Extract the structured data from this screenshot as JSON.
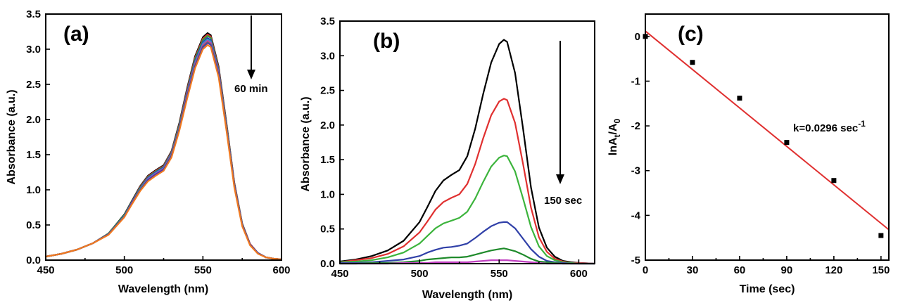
{
  "chart_data": [
    {
      "type": "line",
      "panel_label": "(a)",
      "xlabel": "Wavelength (nm)",
      "ylabel": "Absorbance (a.u.)",
      "xlim": [
        450,
        600
      ],
      "ylim": [
        0,
        3.5
      ],
      "xticks": [
        450,
        500,
        550,
        600
      ],
      "yticks": [
        0.0,
        0.5,
        1.0,
        1.5,
        2.0,
        2.5,
        3.0,
        3.5
      ],
      "ytick_labels": [
        "0.0",
        "0.5",
        "1.0",
        "1.5",
        "2.0",
        "2.5",
        "3.0",
        "3.5"
      ],
      "annotation": "60 min",
      "x": [
        450,
        460,
        470,
        480,
        490,
        500,
        505,
        510,
        515,
        520,
        525,
        530,
        535,
        540,
        545,
        550,
        553,
        555,
        560,
        565,
        570,
        575,
        580,
        585,
        590,
        595,
        600
      ],
      "series": [
        {
          "color": "#000000",
          "values": [
            0.05,
            0.09,
            0.15,
            0.24,
            0.38,
            0.65,
            0.85,
            1.05,
            1.2,
            1.28,
            1.35,
            1.55,
            1.95,
            2.45,
            2.9,
            3.17,
            3.23,
            3.2,
            2.75,
            1.95,
            1.1,
            0.52,
            0.23,
            0.1,
            0.04,
            0.02,
            0.01
          ]
        },
        {
          "color": "#e03030",
          "values": [
            0.05,
            0.09,
            0.15,
            0.24,
            0.38,
            0.64,
            0.84,
            1.04,
            1.19,
            1.27,
            1.34,
            1.54,
            1.93,
            2.43,
            2.88,
            3.15,
            3.21,
            3.18,
            2.73,
            1.93,
            1.09,
            0.51,
            0.23,
            0.1,
            0.04,
            0.02,
            0.01
          ]
        },
        {
          "color": "#2e9a3a",
          "values": [
            0.05,
            0.09,
            0.15,
            0.24,
            0.38,
            0.64,
            0.84,
            1.03,
            1.18,
            1.26,
            1.33,
            1.53,
            1.92,
            2.41,
            2.86,
            3.13,
            3.19,
            3.16,
            2.71,
            1.92,
            1.08,
            0.51,
            0.22,
            0.1,
            0.04,
            0.02,
            0.01
          ]
        },
        {
          "color": "#3030c0",
          "values": [
            0.05,
            0.09,
            0.15,
            0.24,
            0.37,
            0.63,
            0.83,
            1.02,
            1.17,
            1.25,
            1.32,
            1.52,
            1.9,
            2.39,
            2.83,
            3.1,
            3.16,
            3.13,
            2.69,
            1.9,
            1.07,
            0.5,
            0.22,
            0.1,
            0.04,
            0.02,
            0.01
          ]
        },
        {
          "color": "#2aa8b8",
          "values": [
            0.05,
            0.09,
            0.15,
            0.24,
            0.37,
            0.63,
            0.82,
            1.01,
            1.16,
            1.24,
            1.31,
            1.51,
            1.89,
            2.37,
            2.81,
            3.08,
            3.14,
            3.11,
            2.67,
            1.89,
            1.06,
            0.5,
            0.22,
            0.1,
            0.04,
            0.02,
            0.01
          ]
        },
        {
          "color": "#c030c0",
          "values": [
            0.05,
            0.09,
            0.15,
            0.24,
            0.37,
            0.62,
            0.82,
            1.0,
            1.15,
            1.23,
            1.3,
            1.5,
            1.88,
            2.36,
            2.79,
            3.06,
            3.12,
            3.09,
            2.66,
            1.88,
            1.06,
            0.5,
            0.22,
            0.1,
            0.04,
            0.02,
            0.01
          ]
        },
        {
          "color": "#8a8a2a",
          "values": [
            0.05,
            0.09,
            0.15,
            0.24,
            0.37,
            0.62,
            0.81,
            1.0,
            1.14,
            1.22,
            1.29,
            1.49,
            1.87,
            2.34,
            2.77,
            3.04,
            3.1,
            3.07,
            2.64,
            1.87,
            1.05,
            0.49,
            0.22,
            0.1,
            0.04,
            0.02,
            0.01
          ]
        },
        {
          "color": "#4a3aa8",
          "values": [
            0.05,
            0.09,
            0.15,
            0.24,
            0.37,
            0.62,
            0.81,
            0.99,
            1.14,
            1.22,
            1.29,
            1.48,
            1.86,
            2.33,
            2.76,
            3.03,
            3.09,
            3.06,
            2.63,
            1.86,
            1.05,
            0.49,
            0.22,
            0.1,
            0.04,
            0.02,
            0.01
          ]
        },
        {
          "color": "#f07a20",
          "values": [
            0.05,
            0.09,
            0.15,
            0.24,
            0.36,
            0.61,
            0.8,
            0.98,
            1.12,
            1.2,
            1.27,
            1.46,
            1.84,
            2.3,
            2.73,
            3.0,
            3.06,
            3.03,
            2.6,
            1.84,
            1.03,
            0.48,
            0.21,
            0.09,
            0.04,
            0.02,
            0.01
          ]
        }
      ]
    },
    {
      "type": "line",
      "panel_label": "(b)",
      "xlabel": "Wavelength (nm)",
      "ylabel": "Absorbance (a.u.)",
      "xlim": [
        450,
        610
      ],
      "ylim": [
        0,
        3.5
      ],
      "xticks": [
        450,
        500,
        550,
        600
      ],
      "yticks": [
        0.0,
        0.5,
        1.0,
        1.5,
        2.0,
        2.5,
        3.0,
        3.5
      ],
      "ytick_labels": [
        "0.0",
        "0.5",
        "1.0",
        "1.5",
        "2.0",
        "2.5",
        "3.0",
        "3.5"
      ],
      "annotation": "150 sec",
      "x": [
        450,
        460,
        470,
        480,
        490,
        500,
        505,
        510,
        515,
        520,
        525,
        530,
        535,
        540,
        545,
        550,
        553,
        555,
        560,
        565,
        570,
        575,
        580,
        585,
        590,
        595,
        600,
        610
      ],
      "series": [
        {
          "color": "#000000",
          "values": [
            0.03,
            0.06,
            0.11,
            0.19,
            0.33,
            0.6,
            0.82,
            1.05,
            1.2,
            1.28,
            1.35,
            1.55,
            1.95,
            2.45,
            2.9,
            3.17,
            3.23,
            3.2,
            2.75,
            1.95,
            1.1,
            0.52,
            0.23,
            0.1,
            0.04,
            0.02,
            0.01,
            0.0
          ]
        },
        {
          "color": "#e03030",
          "values": [
            0.02,
            0.05,
            0.08,
            0.14,
            0.25,
            0.45,
            0.61,
            0.78,
            0.89,
            0.95,
            1.0,
            1.15,
            1.44,
            1.81,
            2.14,
            2.34,
            2.38,
            2.36,
            2.03,
            1.44,
            0.81,
            0.38,
            0.17,
            0.07,
            0.03,
            0.01,
            0.01,
            0.0
          ]
        },
        {
          "color": "#3cb43c",
          "values": [
            0.02,
            0.03,
            0.05,
            0.09,
            0.16,
            0.29,
            0.4,
            0.51,
            0.58,
            0.62,
            0.66,
            0.75,
            0.94,
            1.18,
            1.4,
            1.53,
            1.56,
            1.55,
            1.33,
            0.94,
            0.53,
            0.25,
            0.11,
            0.05,
            0.02,
            0.01,
            0.0,
            0.0
          ]
        },
        {
          "color": "#3040a8",
          "values": [
            0.01,
            0.01,
            0.02,
            0.04,
            0.06,
            0.11,
            0.16,
            0.2,
            0.23,
            0.24,
            0.26,
            0.29,
            0.37,
            0.46,
            0.54,
            0.59,
            0.6,
            0.6,
            0.51,
            0.36,
            0.21,
            0.1,
            0.04,
            0.02,
            0.01,
            0.0,
            0.0,
            0.0
          ]
        },
        {
          "color": "#1e8a2a",
          "values": [
            0.0,
            0.0,
            0.01,
            0.01,
            0.02,
            0.04,
            0.06,
            0.07,
            0.08,
            0.09,
            0.09,
            0.1,
            0.13,
            0.16,
            0.19,
            0.21,
            0.22,
            0.21,
            0.18,
            0.13,
            0.07,
            0.03,
            0.02,
            0.01,
            0.0,
            0.0,
            0.0,
            0.0
          ]
        },
        {
          "color": "#c040c0",
          "values": [
            0.0,
            0.0,
            0.0,
            0.0,
            0.01,
            0.01,
            0.01,
            0.02,
            0.02,
            0.02,
            0.02,
            0.02,
            0.03,
            0.04,
            0.05,
            0.05,
            0.05,
            0.05,
            0.04,
            0.03,
            0.02,
            0.01,
            0.0,
            0.0,
            0.0,
            0.0,
            0.0,
            0.0
          ]
        }
      ]
    },
    {
      "type": "scatter",
      "panel_label": "(c)",
      "xlabel": "Time (sec)",
      "ylabel": "lnAt/A0",
      "ylabel_parts": {
        "main": "lnA",
        "sub1": "t",
        "mid": "/A",
        "sub2": "0"
      },
      "xlim": [
        0,
        155
      ],
      "ylim": [
        -5,
        0.5
      ],
      "xticks": [
        0,
        30,
        60,
        90,
        120,
        150
      ],
      "yticks": [
        0,
        -1,
        -2,
        -3,
        -4,
        -5
      ],
      "annotation": {
        "main": "k=0.0296 sec",
        "sup": "-1"
      },
      "points": {
        "x": [
          0,
          30,
          60,
          90,
          120,
          150
        ],
        "y": [
          0.0,
          -0.58,
          -1.38,
          -2.37,
          -3.22,
          -4.45
        ]
      },
      "fit": {
        "color": "#e03030",
        "x": [
          0,
          155
        ],
        "y": [
          0.12,
          -4.32
        ]
      }
    }
  ]
}
